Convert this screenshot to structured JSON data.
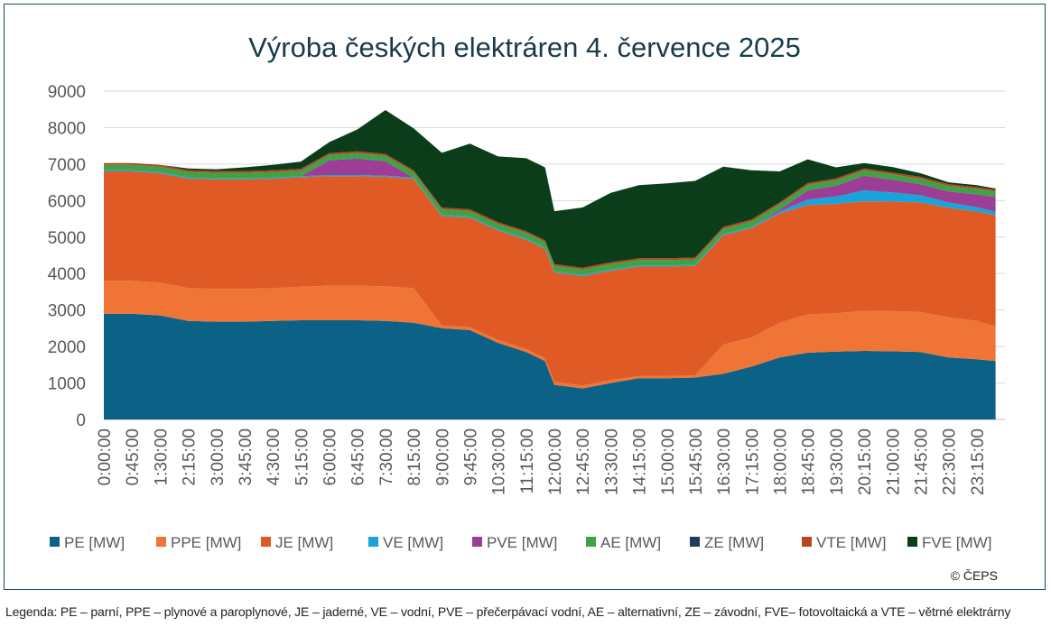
{
  "chart_data": {
    "type": "area",
    "stacked": true,
    "title": "Výroba českých elektráren 4. července 2025",
    "xlabel": "",
    "ylabel": "",
    "ylim": [
      0,
      9000
    ],
    "yticks": [
      0,
      1000,
      2000,
      3000,
      4000,
      5000,
      6000,
      7000,
      8000,
      9000
    ],
    "xticks": [
      "0:00:00",
      "0:45:00",
      "1:30:00",
      "2:15:00",
      "3:00:00",
      "3:45:00",
      "4:30:00",
      "5:15:00",
      "6:00:00",
      "6:45:00",
      "7:30:00",
      "8:15:00",
      "9:00:00",
      "9:45:00",
      "10:30:00",
      "11:15:00",
      "12:00:00",
      "12:45:00",
      "13:30:00",
      "14:15:00",
      "15:00:00",
      "15:45:00",
      "16:30:00",
      "17:15:00",
      "18:00:00",
      "18:45:00",
      "19:30:00",
      "20:15:00",
      "21:00:00",
      "21:45:00",
      "22:30:00",
      "23:15:00"
    ],
    "grid": true,
    "legend_position": "bottom",
    "copyright": "© ČEPS",
    "x_hours": [
      0,
      0.75,
      1.5,
      2.25,
      3,
      3.75,
      4.5,
      5.25,
      6,
      6.75,
      7.5,
      8.25,
      9,
      9.75,
      10.5,
      11.25,
      11.75,
      12,
      12.75,
      13.5,
      14.25,
      15,
      15.75,
      16.5,
      17.25,
      18,
      18.75,
      19.5,
      20.25,
      21,
      21.75,
      22.5,
      23.25,
      23.75
    ],
    "series": [
      {
        "name": "PE [MW]",
        "color": "#0b6186",
        "values": [
          2900,
          2900,
          2850,
          2700,
          2680,
          2680,
          2700,
          2720,
          2720,
          2720,
          2700,
          2650,
          2500,
          2450,
          2100,
          1850,
          1600,
          950,
          850,
          1000,
          1130,
          1130,
          1150,
          1250,
          1450,
          1700,
          1830,
          1860,
          1880,
          1870,
          1850,
          1700,
          1650,
          1600
        ]
      },
      {
        "name": "PPE [MW]",
        "color": "#f07436",
        "values": [
          900,
          900,
          900,
          900,
          900,
          900,
          900,
          920,
          950,
          950,
          950,
          950,
          80,
          80,
          80,
          80,
          80,
          80,
          80,
          80,
          60,
          60,
          60,
          800,
          800,
          950,
          1050,
          1050,
          1100,
          1100,
          1100,
          1100,
          1050,
          950
        ]
      },
      {
        "name": "JE [MW]",
        "color": "#e05a26",
        "values": [
          3000,
          3000,
          3000,
          3000,
          3000,
          3000,
          3000,
          3000,
          3000,
          3000,
          3000,
          3000,
          3000,
          3000,
          3000,
          3000,
          3000,
          3000,
          3000,
          3000,
          3000,
          3000,
          3000,
          3000,
          3000,
          3000,
          3000,
          3000,
          3000,
          3000,
          3000,
          3000,
          3000,
          3050
        ]
      },
      {
        "name": "VE [MW]",
        "color": "#1aa3d9",
        "values": [
          30,
          30,
          30,
          30,
          30,
          30,
          30,
          30,
          30,
          30,
          30,
          30,
          30,
          30,
          30,
          30,
          30,
          30,
          30,
          30,
          30,
          30,
          30,
          30,
          30,
          50,
          150,
          200,
          300,
          250,
          200,
          150,
          120,
          100
        ]
      },
      {
        "name": "PVE [MW]",
        "color": "#9c3d96",
        "values": [
          0,
          0,
          0,
          0,
          0,
          0,
          0,
          0,
          400,
          450,
          400,
          0,
          0,
          0,
          0,
          0,
          0,
          0,
          0,
          0,
          0,
          0,
          0,
          0,
          0,
          50,
          250,
          300,
          400,
          350,
          300,
          300,
          350,
          400
        ]
      },
      {
        "name": "AE [MW]",
        "color": "#3ea346",
        "values": [
          150,
          150,
          150,
          150,
          150,
          150,
          150,
          150,
          150,
          150,
          150,
          150,
          150,
          150,
          150,
          150,
          150,
          150,
          150,
          150,
          150,
          150,
          150,
          150,
          150,
          150,
          150,
          150,
          150,
          150,
          150,
          150,
          150,
          150
        ]
      },
      {
        "name": "ZE [MW]",
        "color": "#1e3d5a",
        "values": [
          0,
          0,
          0,
          0,
          0,
          0,
          0,
          0,
          0,
          0,
          0,
          0,
          0,
          0,
          0,
          0,
          0,
          0,
          0,
          0,
          0,
          0,
          0,
          0,
          0,
          0,
          0,
          0,
          0,
          0,
          0,
          0,
          0,
          0
        ]
      },
      {
        "name": "VTE [MW]",
        "color": "#b7451f",
        "values": [
          50,
          50,
          50,
          50,
          50,
          50,
          50,
          50,
          50,
          50,
          50,
          50,
          50,
          50,
          50,
          50,
          50,
          50,
          50,
          50,
          50,
          50,
          50,
          50,
          50,
          50,
          50,
          50,
          50,
          50,
          50,
          50,
          50,
          50
        ]
      },
      {
        "name": "FVE [MW]",
        "color": "#0b3d1a",
        "values": [
          0,
          0,
          0,
          50,
          50,
          100,
          150,
          200,
          300,
          600,
          1200,
          1150,
          1500,
          1800,
          1800,
          2000,
          2000,
          1450,
          1650,
          1900,
          2000,
          2050,
          2100,
          1650,
          1350,
          850,
          650,
          300,
          150,
          150,
          100,
          50,
          50,
          30
        ]
      }
    ]
  },
  "legend_note": "Legenda: PE – parní, PPE – plynové a paroplynové, JE – jaderné, VE – vodní, PVE – přečerpávací vodní, AE – alternativní, ZE – závodní, FVE– fotovoltaická a VTE – větrné elektrárny"
}
